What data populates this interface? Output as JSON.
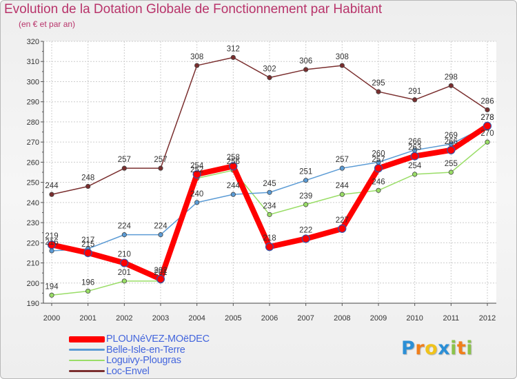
{
  "header": {
    "title": "Evolution de la Dotation Globale de Fonctionnement par Habitant",
    "subtitle": "(en € et par an)"
  },
  "chart_data": {
    "type": "line",
    "title": "Evolution de la Dotation Globale de Fonctionnement par Habitant",
    "subtitle": "(en € et par an)",
    "xlabel": "",
    "ylabel": "",
    "categories": [
      "2000",
      "2001",
      "2002",
      "2003",
      "2004",
      "2005",
      "2006",
      "2007",
      "2008",
      "2009",
      "2010",
      "2011",
      "2012"
    ],
    "ylim": [
      190,
      320
    ],
    "yticks": [
      190,
      200,
      210,
      220,
      230,
      240,
      250,
      260,
      270,
      280,
      290,
      300,
      310,
      320
    ],
    "grid": true,
    "legend_position": "bottom-left",
    "series": [
      {
        "name": "PLOUNéVEZ-MOëDEC",
        "color": "#ff0000",
        "values": [
          219,
          215,
          210,
          202,
          254,
          258,
          218,
          222,
          227,
          257,
          263,
          266,
          278
        ],
        "labels": [
          "219",
          "215",
          "210",
          "202",
          "254",
          "258",
          "218",
          "222",
          "227",
          "257",
          "263",
          "266",
          "278"
        ]
      },
      {
        "name": "Belle-Isle-en-Terre",
        "color": "#5b9bd5",
        "values": [
          216,
          217,
          224,
          224,
          240,
          244,
          245,
          251,
          257,
          260,
          266,
          269,
          278
        ],
        "labels": [
          "216",
          "217",
          "224",
          "224",
          "240",
          "244",
          "245",
          "251",
          "257",
          "260",
          "266",
          "269",
          "278"
        ]
      },
      {
        "name": "Loguivy-Plougras",
        "color": "#99dd66",
        "values": [
          194,
          196,
          201,
          201,
          252,
          256,
          234,
          239,
          244,
          246,
          254,
          255,
          270
        ],
        "labels": [
          "194",
          "196",
          "201",
          "201",
          "252",
          "256",
          "234",
          "239",
          "244",
          "246",
          "254",
          "255",
          "270"
        ]
      },
      {
        "name": "Loc-Envel",
        "color": "#7a2e2e",
        "values": [
          244,
          248,
          257,
          257,
          308,
          312,
          302,
          306,
          308,
          295,
          291,
          298,
          286
        ],
        "labels": [
          "244",
          "248",
          "257",
          "257",
          "308",
          "312",
          "302",
          "306",
          "308",
          "295",
          "291",
          "298",
          "286"
        ]
      }
    ]
  },
  "branding": {
    "letters": [
      "P",
      "r",
      "o",
      "x",
      "i",
      "t",
      "i"
    ],
    "colors": [
      "#2b8fd6",
      "#f07f1b",
      "#f0c31b",
      "#2b8fd6",
      "#8bc34a",
      "#f07f1b",
      "#8bc34a"
    ]
  }
}
